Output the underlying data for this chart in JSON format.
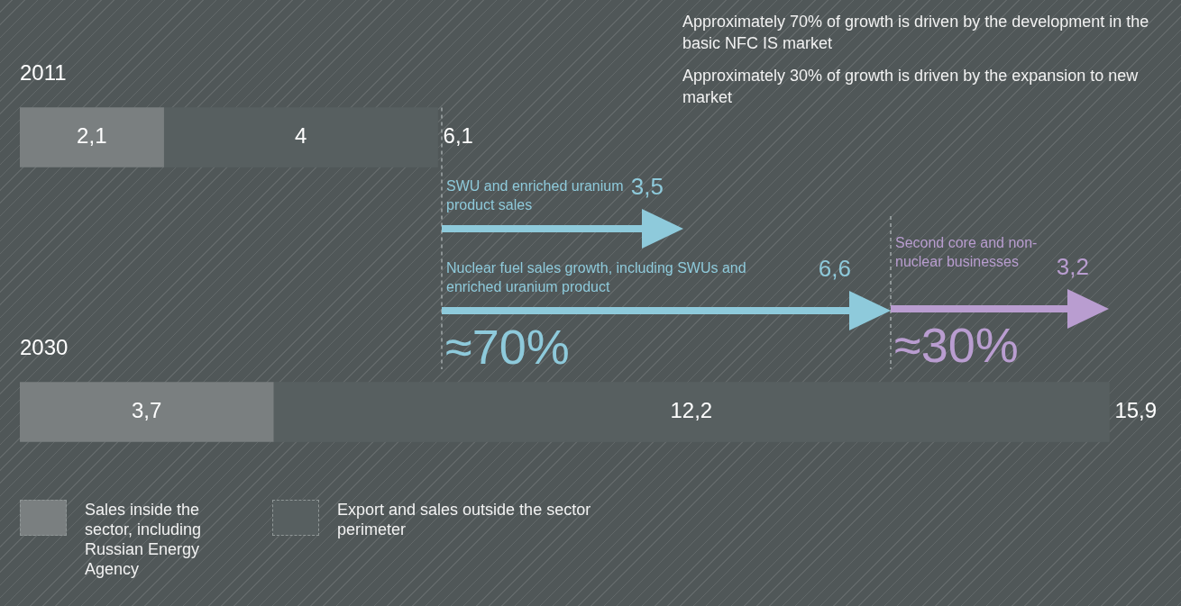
{
  "chart_data": {
    "type": "bar",
    "orientation": "horizontal",
    "stacked": true,
    "categories": [
      "2011",
      "2030"
    ],
    "series": [
      {
        "name": "Sales inside the sector, including Russian Energy Agency",
        "color": "#7a7f80",
        "values": [
          2.1,
          3.7
        ],
        "value_labels": [
          "2,1",
          "3,7"
        ]
      },
      {
        "name": "Export and sales outside the sector perimeter",
        "color": "#575f60",
        "values": [
          4,
          12.2
        ],
        "value_labels": [
          "4",
          "12,2"
        ]
      }
    ],
    "totals": [
      "6,1",
      "15,9"
    ],
    "tick_labels": "y",
    "legend": "bottom left",
    "annotations": [
      "Approximately 70% of growth is driven by the development in the basic NFC IS market",
      "Approximately 30% of growth is driven by the expansion to new market",
      "SWU and enriched uranium product sales",
      "3,5",
      "Nuclear fuel sales growth, including SWUs and enriched uranium product",
      "6,6",
      "≈70%",
      "Second core and non-nuclear businesses",
      "3,2",
      "≈30%"
    ]
  }
}
